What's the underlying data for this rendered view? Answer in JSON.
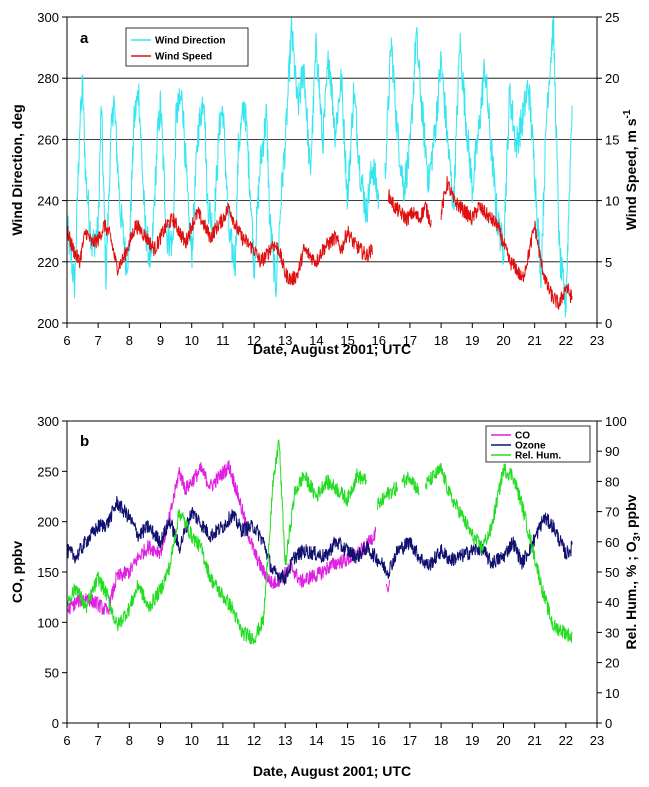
{
  "chart_data": [
    {
      "type": "line",
      "panel_label": "a",
      "xlabel": "Date, August 2001; UTC",
      "ylabel": "Wind Direction, deg",
      "y2label_prefix": "Wind Speed, m s",
      "y2label_sup": "-1",
      "xlim": [
        6,
        23
      ],
      "ylim": [
        200,
        300
      ],
      "y2lim": [
        0,
        25
      ],
      "x_ticks": [
        "6",
        "7",
        "8",
        "9",
        "10",
        "11",
        "12",
        "13",
        "14",
        "15",
        "16",
        "17",
        "18",
        "19",
        "20",
        "21",
        "22",
        "23"
      ],
      "y_ticks": [
        "200",
        "220",
        "240",
        "260",
        "280",
        "300"
      ],
      "y2_ticks": [
        "0",
        "5",
        "10",
        "15",
        "20",
        "25"
      ],
      "grid": "horizontal",
      "legend_position": "top-left",
      "series": [
        {
          "name": "Wind Direction",
          "axis": "left",
          "color": "#33e6f0",
          "x": [
            6.0,
            6.25,
            6.4,
            6.5,
            6.6,
            6.8,
            7.0,
            7.1,
            7.25,
            7.4,
            7.5,
            7.7,
            7.9,
            8.0,
            8.15,
            8.3,
            8.5,
            8.7,
            8.9,
            9.0,
            9.2,
            9.4,
            9.5,
            9.7,
            9.9,
            10.0,
            10.2,
            10.4,
            10.5,
            10.7,
            10.9,
            11.0,
            11.2,
            11.4,
            11.5,
            11.7,
            11.9,
            12.0,
            12.2,
            12.4,
            12.5,
            12.7,
            12.9,
            13.0,
            13.2,
            13.4,
            13.6,
            13.8,
            14.0,
            14.2,
            14.4,
            14.6,
            14.8,
            15.0,
            15.2,
            15.4,
            15.6,
            15.8,
            16.0,
            16.2,
            16.4,
            16.6,
            16.8,
            17.0,
            17.2,
            17.4,
            17.6,
            17.8,
            18.0,
            18.2,
            18.4,
            18.6,
            18.8,
            19.0,
            19.2,
            19.4,
            19.6,
            19.8,
            20.0,
            20.2,
            20.4,
            20.6,
            20.8,
            21.0,
            21.2,
            21.4,
            21.6,
            21.8,
            22.0,
            22.2
          ],
          "y": [
            232,
            212,
            262,
            278,
            248,
            225,
            230,
            272,
            215,
            258,
            274,
            238,
            220,
            224,
            266,
            276,
            232,
            218,
            260,
            272,
            228,
            226,
            268,
            274,
            234,
            222,
            262,
            276,
            240,
            230,
            266,
            270,
            228,
            220,
            258,
            272,
            240,
            218,
            252,
            268,
            234,
            212,
            246,
            258,
            296,
            270,
            284,
            248,
            292,
            258,
            288,
            262,
            280,
            240,
            276,
            250,
            236,
            252,
            240,
            248,
            292,
            262,
            244,
            256,
            294,
            268,
            246,
            262,
            286,
            260,
            238,
            292,
            266,
            244,
            262,
            284,
            258,
            234,
            224,
            276,
            258,
            266,
            278,
            250,
            216,
            272,
            298,
            222,
            205,
            272
          ],
          "segments": [
            [
              6.0,
              16.0
            ],
            [
              16.2,
              22.2
            ]
          ]
        },
        {
          "name": "Wind Speed",
          "axis": "right",
          "color": "#e01010",
          "x": [
            6.0,
            6.2,
            6.4,
            6.6,
            6.8,
            7.0,
            7.2,
            7.4,
            7.6,
            7.8,
            8.0,
            8.2,
            8.4,
            8.6,
            8.8,
            9.0,
            9.2,
            9.4,
            9.6,
            9.8,
            10.0,
            10.2,
            10.4,
            10.6,
            10.8,
            11.0,
            11.2,
            11.4,
            11.6,
            11.8,
            12.0,
            12.2,
            12.4,
            12.6,
            12.8,
            13.0,
            13.2,
            13.4,
            13.6,
            13.8,
            14.0,
            14.2,
            14.4,
            14.6,
            14.8,
            15.0,
            15.2,
            15.4,
            15.6,
            15.8,
            16.0,
            16.3,
            16.5,
            16.7,
            16.9,
            17.1,
            17.3,
            17.5,
            17.7,
            18.0,
            18.2,
            18.4,
            18.6,
            18.8,
            19.0,
            19.2,
            19.4,
            19.6,
            19.8,
            20.0,
            20.2,
            20.4,
            20.6,
            20.8,
            21.0,
            21.2,
            21.4,
            21.6,
            21.8,
            22.0,
            22.2
          ],
          "y": [
            7.5,
            6.0,
            5.0,
            7.5,
            6.5,
            6.8,
            8.0,
            7.0,
            4.5,
            5.2,
            6.5,
            8.0,
            7.5,
            6.8,
            6.0,
            7.0,
            8.0,
            8.5,
            7.5,
            6.5,
            8.0,
            9.0,
            8.0,
            7.0,
            7.8,
            8.5,
            9.5,
            8.0,
            7.0,
            6.5,
            6.0,
            5.0,
            5.5,
            6.5,
            6.0,
            4.0,
            3.5,
            4.0,
            6.0,
            5.5,
            5.0,
            6.0,
            6.5,
            7.0,
            6.0,
            7.5,
            6.5,
            6.0,
            5.5,
            6.0,
            10.5,
            10.5,
            9.5,
            9.0,
            8.5,
            9.0,
            8.5,
            9.5,
            8.0,
            9.0,
            11.5,
            10.0,
            9.5,
            9.0,
            8.5,
            9.5,
            9.0,
            8.5,
            8.0,
            6.5,
            5.0,
            4.5,
            3.5,
            5.5,
            8.0,
            5.0,
            3.0,
            2.0,
            1.5,
            3.0,
            2.0
          ],
          "segments": [
            [
              6.0,
              15.8
            ],
            [
              16.3,
              17.7
            ],
            [
              18.0,
              22.2
            ]
          ]
        }
      ]
    },
    {
      "type": "line",
      "panel_label": "b",
      "xlabel": "Date, August 2001; UTC",
      "ylabel": "CO, ppbv",
      "y2label_prefix": "Rel. Hum., % ; O",
      "y2label_sub": "3",
      "y2label_suffix": ", ppbv",
      "xlim": [
        6,
        23
      ],
      "ylim": [
        0,
        300
      ],
      "y2lim": [
        0,
        100
      ],
      "x_ticks": [
        "6",
        "7",
        "8",
        "9",
        "10",
        "11",
        "12",
        "13",
        "14",
        "15",
        "16",
        "17",
        "18",
        "19",
        "20",
        "21",
        "22",
        "23"
      ],
      "y_ticks": [
        "0",
        "50",
        "100",
        "150",
        "200",
        "250",
        "300"
      ],
      "y2_ticks": [
        "0",
        "10",
        "20",
        "30",
        "40",
        "50",
        "60",
        "70",
        "80",
        "90",
        "100"
      ],
      "grid": "none",
      "legend_position": "top-right",
      "series": [
        {
          "name": "CO",
          "axis": "left",
          "color": "#e020e0",
          "x": [
            6.0,
            6.3,
            6.6,
            7.0,
            7.3,
            7.6,
            8.0,
            8.3,
            8.6,
            9.0,
            9.3,
            9.6,
            9.8,
            10.0,
            10.3,
            10.6,
            10.9,
            11.2,
            11.5,
            11.8,
            12.0,
            12.3,
            12.6,
            12.9,
            13.2,
            13.5,
            13.8,
            14.1,
            14.4,
            14.7,
            15.0,
            15.3,
            15.6,
            15.9
          ],
          "y": [
            112,
            120,
            125,
            118,
            110,
            145,
            150,
            165,
            175,
            170,
            205,
            250,
            232,
            240,
            252,
            235,
            245,
            255,
            225,
            190,
            170,
            150,
            138,
            145,
            155,
            140,
            145,
            148,
            155,
            160,
            162,
            168,
            175,
            190
          ],
          "segments": [
            [
              6.0,
              15.9
            ]
          ],
          "extra_points": [
            [
              16.3,
              130
            ]
          ]
        },
        {
          "name": "Ozone",
          "axis": "right",
          "color": "#101070",
          "x": [
            6.0,
            6.3,
            6.6,
            7.0,
            7.3,
            7.6,
            8.0,
            8.3,
            8.6,
            9.0,
            9.3,
            9.6,
            10.0,
            10.3,
            10.6,
            11.0,
            11.3,
            11.6,
            12.0,
            12.3,
            12.6,
            13.0,
            13.3,
            13.6,
            14.0,
            14.3,
            14.6,
            15.0,
            15.3,
            15.6,
            16.0,
            16.3,
            16.6,
            17.0,
            17.3,
            17.6,
            18.0,
            18.3,
            18.6,
            19.0,
            19.3,
            19.6,
            20.0,
            20.3,
            20.6,
            21.0,
            21.3,
            21.6,
            22.0,
            22.2
          ],
          "y": [
            57,
            55,
            60,
            65,
            66,
            73,
            68,
            62,
            65,
            60,
            67,
            58,
            70,
            66,
            62,
            65,
            69,
            64,
            65,
            60,
            50,
            48,
            55,
            57,
            56,
            55,
            60,
            57,
            55,
            58,
            54,
            50,
            57,
            60,
            55,
            52,
            57,
            54,
            55,
            57,
            58,
            53,
            55,
            60,
            53,
            61,
            68,
            65,
            56,
            58
          ],
          "segments": [
            [
              6.0,
              22.2
            ]
          ]
        },
        {
          "name": "Rel. Hum.",
          "axis": "right",
          "color": "#22dd22",
          "x": [
            6.0,
            6.3,
            6.6,
            7.0,
            7.3,
            7.6,
            8.0,
            8.3,
            8.6,
            9.0,
            9.3,
            9.6,
            10.0,
            10.3,
            10.6,
            11.0,
            11.3,
            11.6,
            12.0,
            12.3,
            12.6,
            12.8,
            13.0,
            13.3,
            13.6,
            14.0,
            14.3,
            14.6,
            15.0,
            15.3,
            15.6,
            16.0,
            16.3,
            16.6,
            17.0,
            17.3,
            17.6,
            18.0,
            18.3,
            18.6,
            19.0,
            19.3,
            19.6,
            20.0,
            20.3,
            20.6,
            21.0,
            21.3,
            21.6,
            22.0,
            22.2
          ],
          "y": [
            40,
            45,
            38,
            48,
            42,
            32,
            38,
            46,
            38,
            44,
            52,
            70,
            62,
            58,
            48,
            42,
            38,
            30,
            28,
            34,
            78,
            94,
            52,
            76,
            82,
            75,
            80,
            78,
            74,
            82,
            80,
            72,
            76,
            78,
            82,
            76,
            80,
            84,
            75,
            70,
            62,
            58,
            64,
            84,
            82,
            72,
            55,
            42,
            32,
            30,
            28
          ],
          "segments": [
            [
              6.0,
              15.6
            ],
            [
              15.95,
              16.6
            ],
            [
              16.75,
              17.3
            ],
            [
              17.5,
              22.2
            ]
          ]
        }
      ]
    }
  ]
}
